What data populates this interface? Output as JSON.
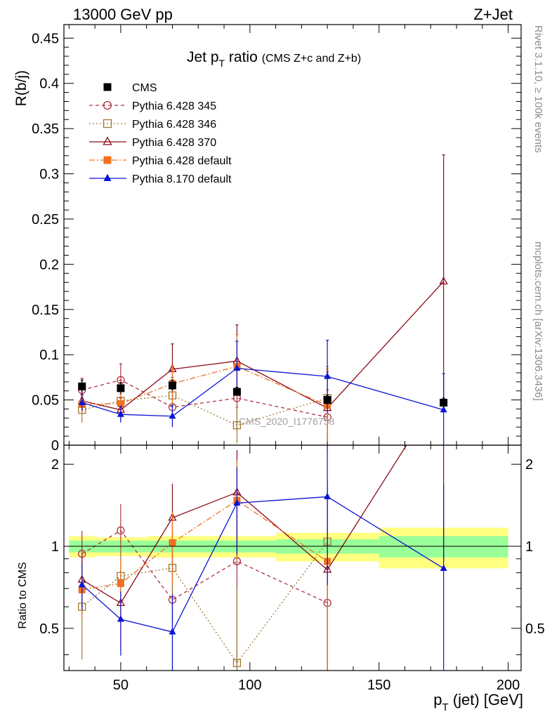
{
  "header": {
    "left": "13000 GeV pp",
    "right": "Z+Jet"
  },
  "side_labels": {
    "rivet": "Rivet 3.1.10, ≥ 100k events",
    "mcplots": "mcplots.cern.ch [arXiv:1306.3436]"
  },
  "watermark": "CMS_2020_I1776758",
  "chart_data": {
    "type": "scatter",
    "title": "Jet p_T ratio (CMS  Z+c and Z+b)",
    "title_main": "Jet p",
    "title_sub": "T",
    "title_tail": " ratio",
    "title_small": "(CMS  Z+c and Z+b)",
    "ylabel": "R(b/j)",
    "ratio_ylabel": "Ratio to CMS",
    "xlabel_main": "p",
    "xlabel_sub": "T",
    "xlabel_tail": " (jet) [GeV]",
    "xlim": [
      28,
      205
    ],
    "ylim": [
      0,
      0.465
    ],
    "ratio_ylim": [
      0.35,
      2.35
    ],
    "ratio_log": true,
    "x_ticks": [
      "50",
      "100",
      "150",
      "200"
    ],
    "y_ticks": [
      "0",
      "0.05",
      "0.1",
      "0.15",
      "0.2",
      "0.25",
      "0.3",
      "0.35",
      "0.4",
      "0.45"
    ],
    "ratio_ticks": [
      "0.5",
      "1",
      "2"
    ],
    "ratio_tick_values": [
      0.5,
      1,
      2
    ],
    "legend_position": "top-left",
    "bins": [
      {
        "xlo": 30,
        "xhi": 40,
        "x": 35,
        "y": 0.065,
        "stat": 0.007,
        "band_stat": 0.05,
        "band_tot": 0.09
      },
      {
        "xlo": 40,
        "xhi": 60,
        "x": 50,
        "y": 0.063,
        "stat": 0.006,
        "band_stat": 0.05,
        "band_tot": 0.08
      },
      {
        "xlo": 60,
        "xhi": 80,
        "x": 70,
        "y": 0.066,
        "stat": 0.006,
        "band_stat": 0.05,
        "band_tot": 0.09
      },
      {
        "xlo": 80,
        "xhi": 110,
        "x": 95,
        "y": 0.059,
        "stat": 0.005,
        "band_stat": 0.05,
        "band_tot": 0.09
      },
      {
        "xlo": 110,
        "xhi": 150,
        "x": 130,
        "y": 0.05,
        "stat": 0.005,
        "band_stat": 0.06,
        "band_tot": 0.12
      },
      {
        "xlo": 150,
        "xhi": 200,
        "x": 175,
        "y": 0.047,
        "stat": 0.005,
        "band_stat": 0.09,
        "band_tot": 0.17
      }
    ],
    "series": [
      {
        "name": "CMS",
        "color": "#000000",
        "marker": "square-filled",
        "line": "none",
        "points": [
          {
            "x": 35,
            "y": 0.065,
            "err": 0.007
          },
          {
            "x": 50,
            "y": 0.063,
            "err": 0.006
          },
          {
            "x": 70,
            "y": 0.066,
            "err": 0.006
          },
          {
            "x": 95,
            "y": 0.059,
            "err": 0.005
          },
          {
            "x": 130,
            "y": 0.05,
            "err": 0.005
          },
          {
            "x": 175,
            "y": 0.047,
            "err": 0.005
          }
        ]
      },
      {
        "name": "Pythia 6.428 345",
        "color": "#b03040",
        "marker": "circle-open",
        "line": "dashed",
        "points": [
          {
            "x": 35,
            "y": 0.061,
            "err": 0.013
          },
          {
            "x": 50,
            "y": 0.072,
            "err": 0.018
          },
          {
            "x": 70,
            "y": 0.042,
            "err": 0.02
          },
          {
            "x": 95,
            "y": 0.052,
            "err": 0.036
          },
          {
            "x": 130,
            "y": 0.031,
            "err": 0.03
          }
        ]
      },
      {
        "name": "Pythia 6.428 346",
        "color": "#a07830",
        "marker": "square-open",
        "line": "dotted",
        "points": [
          {
            "x": 35,
            "y": 0.039,
            "err": 0.014
          },
          {
            "x": 50,
            "y": 0.049,
            "err": 0.015
          },
          {
            "x": 70,
            "y": 0.055,
            "err": 0.02
          },
          {
            "x": 95,
            "y": 0.022,
            "err": 0.02
          },
          {
            "x": 130,
            "y": 0.052,
            "err": 0.035
          }
        ]
      },
      {
        "name": "Pythia 6.428 370",
        "color": "#8b0a1a",
        "marker": "triangle-open",
        "line": "solid",
        "points": [
          {
            "x": 35,
            "y": 0.049,
            "err": 0.012
          },
          {
            "x": 50,
            "y": 0.039,
            "err": 0.013
          },
          {
            "x": 70,
            "y": 0.084,
            "err": 0.028
          },
          {
            "x": 95,
            "y": 0.093,
            "err": 0.04
          },
          {
            "x": 130,
            "y": 0.041,
            "err": 0.04
          },
          {
            "x": 175,
            "y": 0.181,
            "err": 0.14
          }
        ]
      },
      {
        "name": "Pythia 6.428 default",
        "color": "#f07020",
        "marker": "square-filled",
        "line": "dashdot",
        "points": [
          {
            "x": 35,
            "y": 0.045,
            "err": 0.01
          },
          {
            "x": 50,
            "y": 0.046,
            "err": 0.011
          },
          {
            "x": 70,
            "y": 0.068,
            "err": 0.02
          },
          {
            "x": 95,
            "y": 0.087,
            "err": 0.035
          },
          {
            "x": 130,
            "y": 0.044,
            "err": 0.04
          }
        ]
      },
      {
        "name": "Pythia 8.170 default",
        "color": "#0a14d2",
        "marker": "triangle-filled",
        "line": "solid",
        "points": [
          {
            "x": 35,
            "y": 0.047,
            "err": 0.009
          },
          {
            "x": 50,
            "y": 0.034,
            "err": 0.009
          },
          {
            "x": 70,
            "y": 0.032,
            "err": 0.012
          },
          {
            "x": 95,
            "y": 0.085,
            "err": 0.03
          },
          {
            "x": 130,
            "y": 0.076,
            "err": 0.04
          },
          {
            "x": 175,
            "y": 0.039,
            "err": 0.04
          }
        ]
      }
    ]
  }
}
